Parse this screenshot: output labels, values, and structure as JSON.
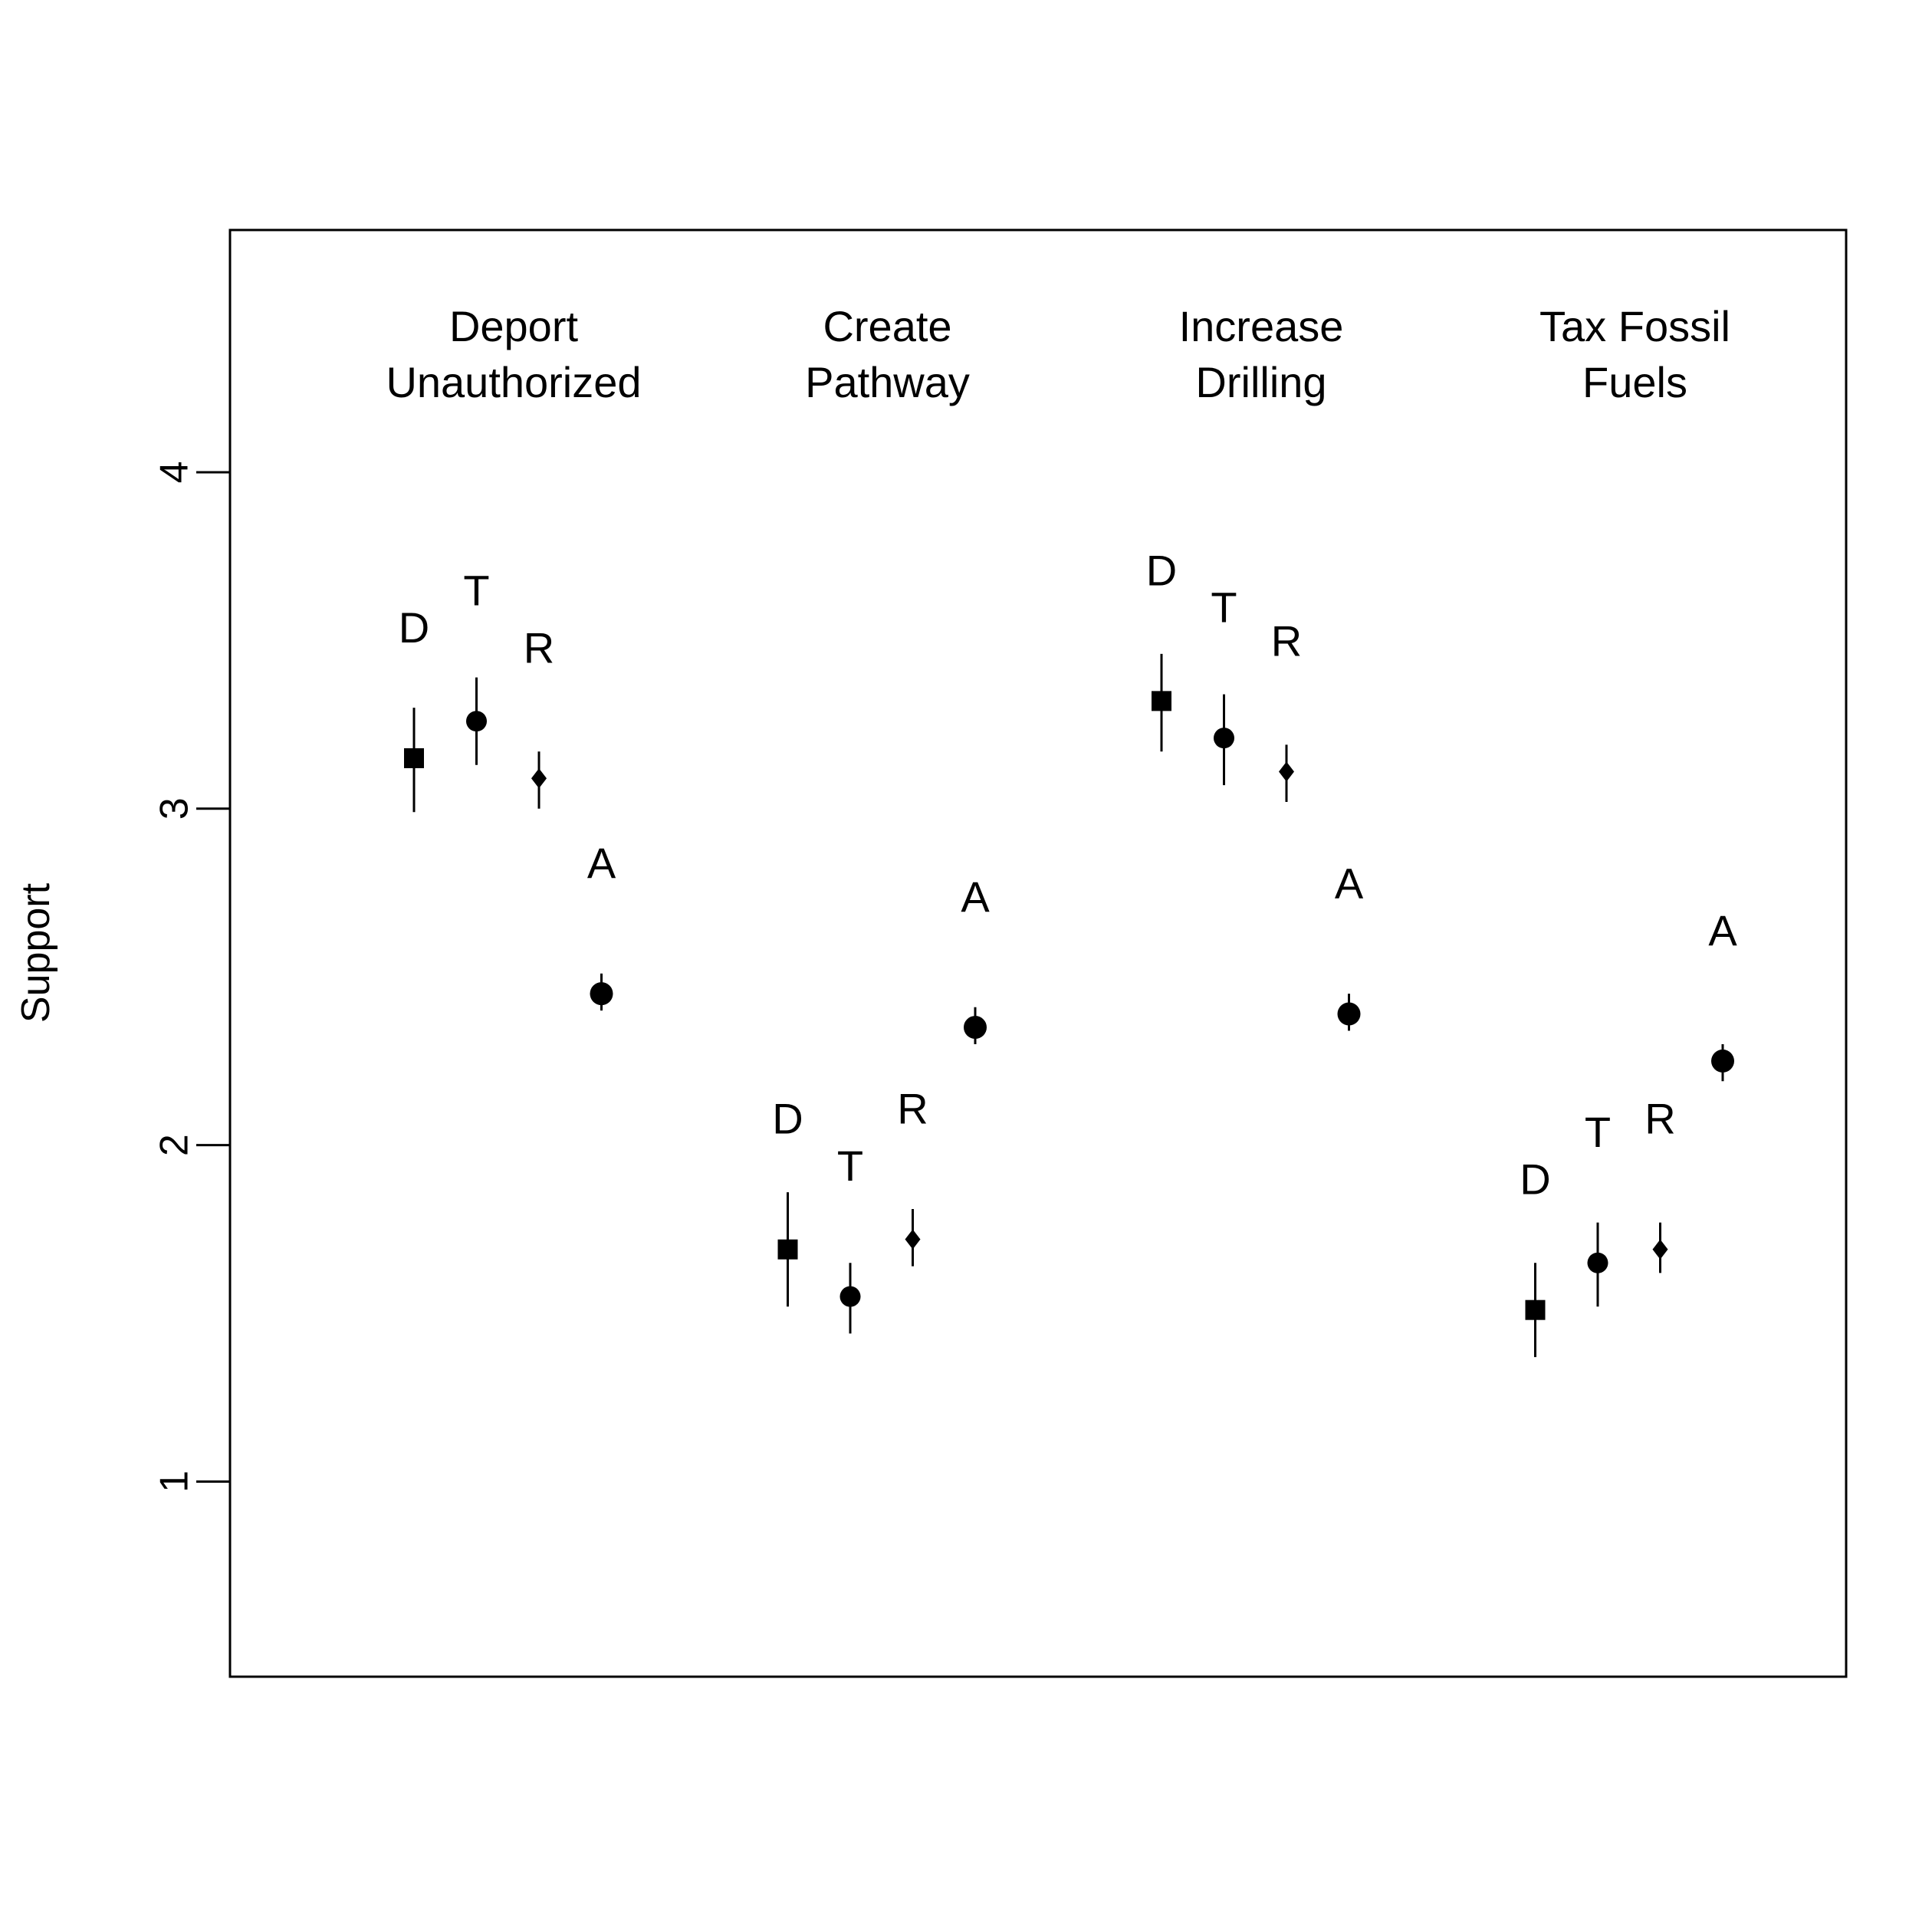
{
  "chart_data": {
    "type": "scatter",
    "title": "",
    "xlabel": "",
    "ylabel": "Support",
    "ylim": [
      0.42,
      4.72
    ],
    "yticks": [
      1,
      2,
      3,
      4
    ],
    "grid": false,
    "legend": "none",
    "groups": [
      {
        "label_lines": [
          "Deport",
          "Unauthorized"
        ],
        "points": [
          {
            "label": "D",
            "marker": "square",
            "y": 3.15,
            "lo": 2.99,
            "hi": 3.3,
            "label_y": 3.54
          },
          {
            "label": "T",
            "marker": "circle",
            "y": 3.26,
            "lo": 3.13,
            "hi": 3.39,
            "label_y": 3.65
          },
          {
            "label": "R",
            "marker": "diamond",
            "y": 3.09,
            "lo": 3.0,
            "hi": 3.17,
            "label_y": 3.48
          },
          {
            "label": "A",
            "marker": "circle-large",
            "y": 2.45,
            "lo": 2.4,
            "hi": 2.51,
            "label_y": 2.84
          }
        ]
      },
      {
        "label_lines": [
          "Create",
          "Pathway"
        ],
        "points": [
          {
            "label": "D",
            "marker": "square",
            "y": 1.69,
            "lo": 1.52,
            "hi": 1.86,
            "label_y": 2.08
          },
          {
            "label": "T",
            "marker": "circle",
            "y": 1.55,
            "lo": 1.44,
            "hi": 1.65,
            "label_y": 1.94
          },
          {
            "label": "R",
            "marker": "diamond",
            "y": 1.72,
            "lo": 1.64,
            "hi": 1.81,
            "label_y": 2.11
          },
          {
            "label": "A",
            "marker": "circle-large",
            "y": 2.35,
            "lo": 2.3,
            "hi": 2.41,
            "label_y": 2.74
          }
        ]
      },
      {
        "label_lines": [
          "Increase",
          "Drilling"
        ],
        "points": [
          {
            "label": "D",
            "marker": "square",
            "y": 3.32,
            "lo": 3.17,
            "hi": 3.46,
            "label_y": 3.71
          },
          {
            "label": "T",
            "marker": "circle",
            "y": 3.21,
            "lo": 3.07,
            "hi": 3.34,
            "label_y": 3.6
          },
          {
            "label": "R",
            "marker": "diamond",
            "y": 3.11,
            "lo": 3.02,
            "hi": 3.19,
            "label_y": 3.5
          },
          {
            "label": "A",
            "marker": "circle-large",
            "y": 2.39,
            "lo": 2.34,
            "hi": 2.45,
            "label_y": 2.78
          }
        ]
      },
      {
        "label_lines": [
          "Tax Fossil",
          "Fuels"
        ],
        "points": [
          {
            "label": "D",
            "marker": "square",
            "y": 1.51,
            "lo": 1.37,
            "hi": 1.65,
            "label_y": 1.9
          },
          {
            "label": "T",
            "marker": "circle",
            "y": 1.65,
            "lo": 1.52,
            "hi": 1.77,
            "label_y": 2.04
          },
          {
            "label": "R",
            "marker": "diamond",
            "y": 1.69,
            "lo": 1.62,
            "hi": 1.77,
            "label_y": 2.08
          },
          {
            "label": "A",
            "marker": "circle-large",
            "y": 2.25,
            "lo": 2.19,
            "hi": 2.3,
            "label_y": 2.64
          }
        ]
      }
    ]
  }
}
